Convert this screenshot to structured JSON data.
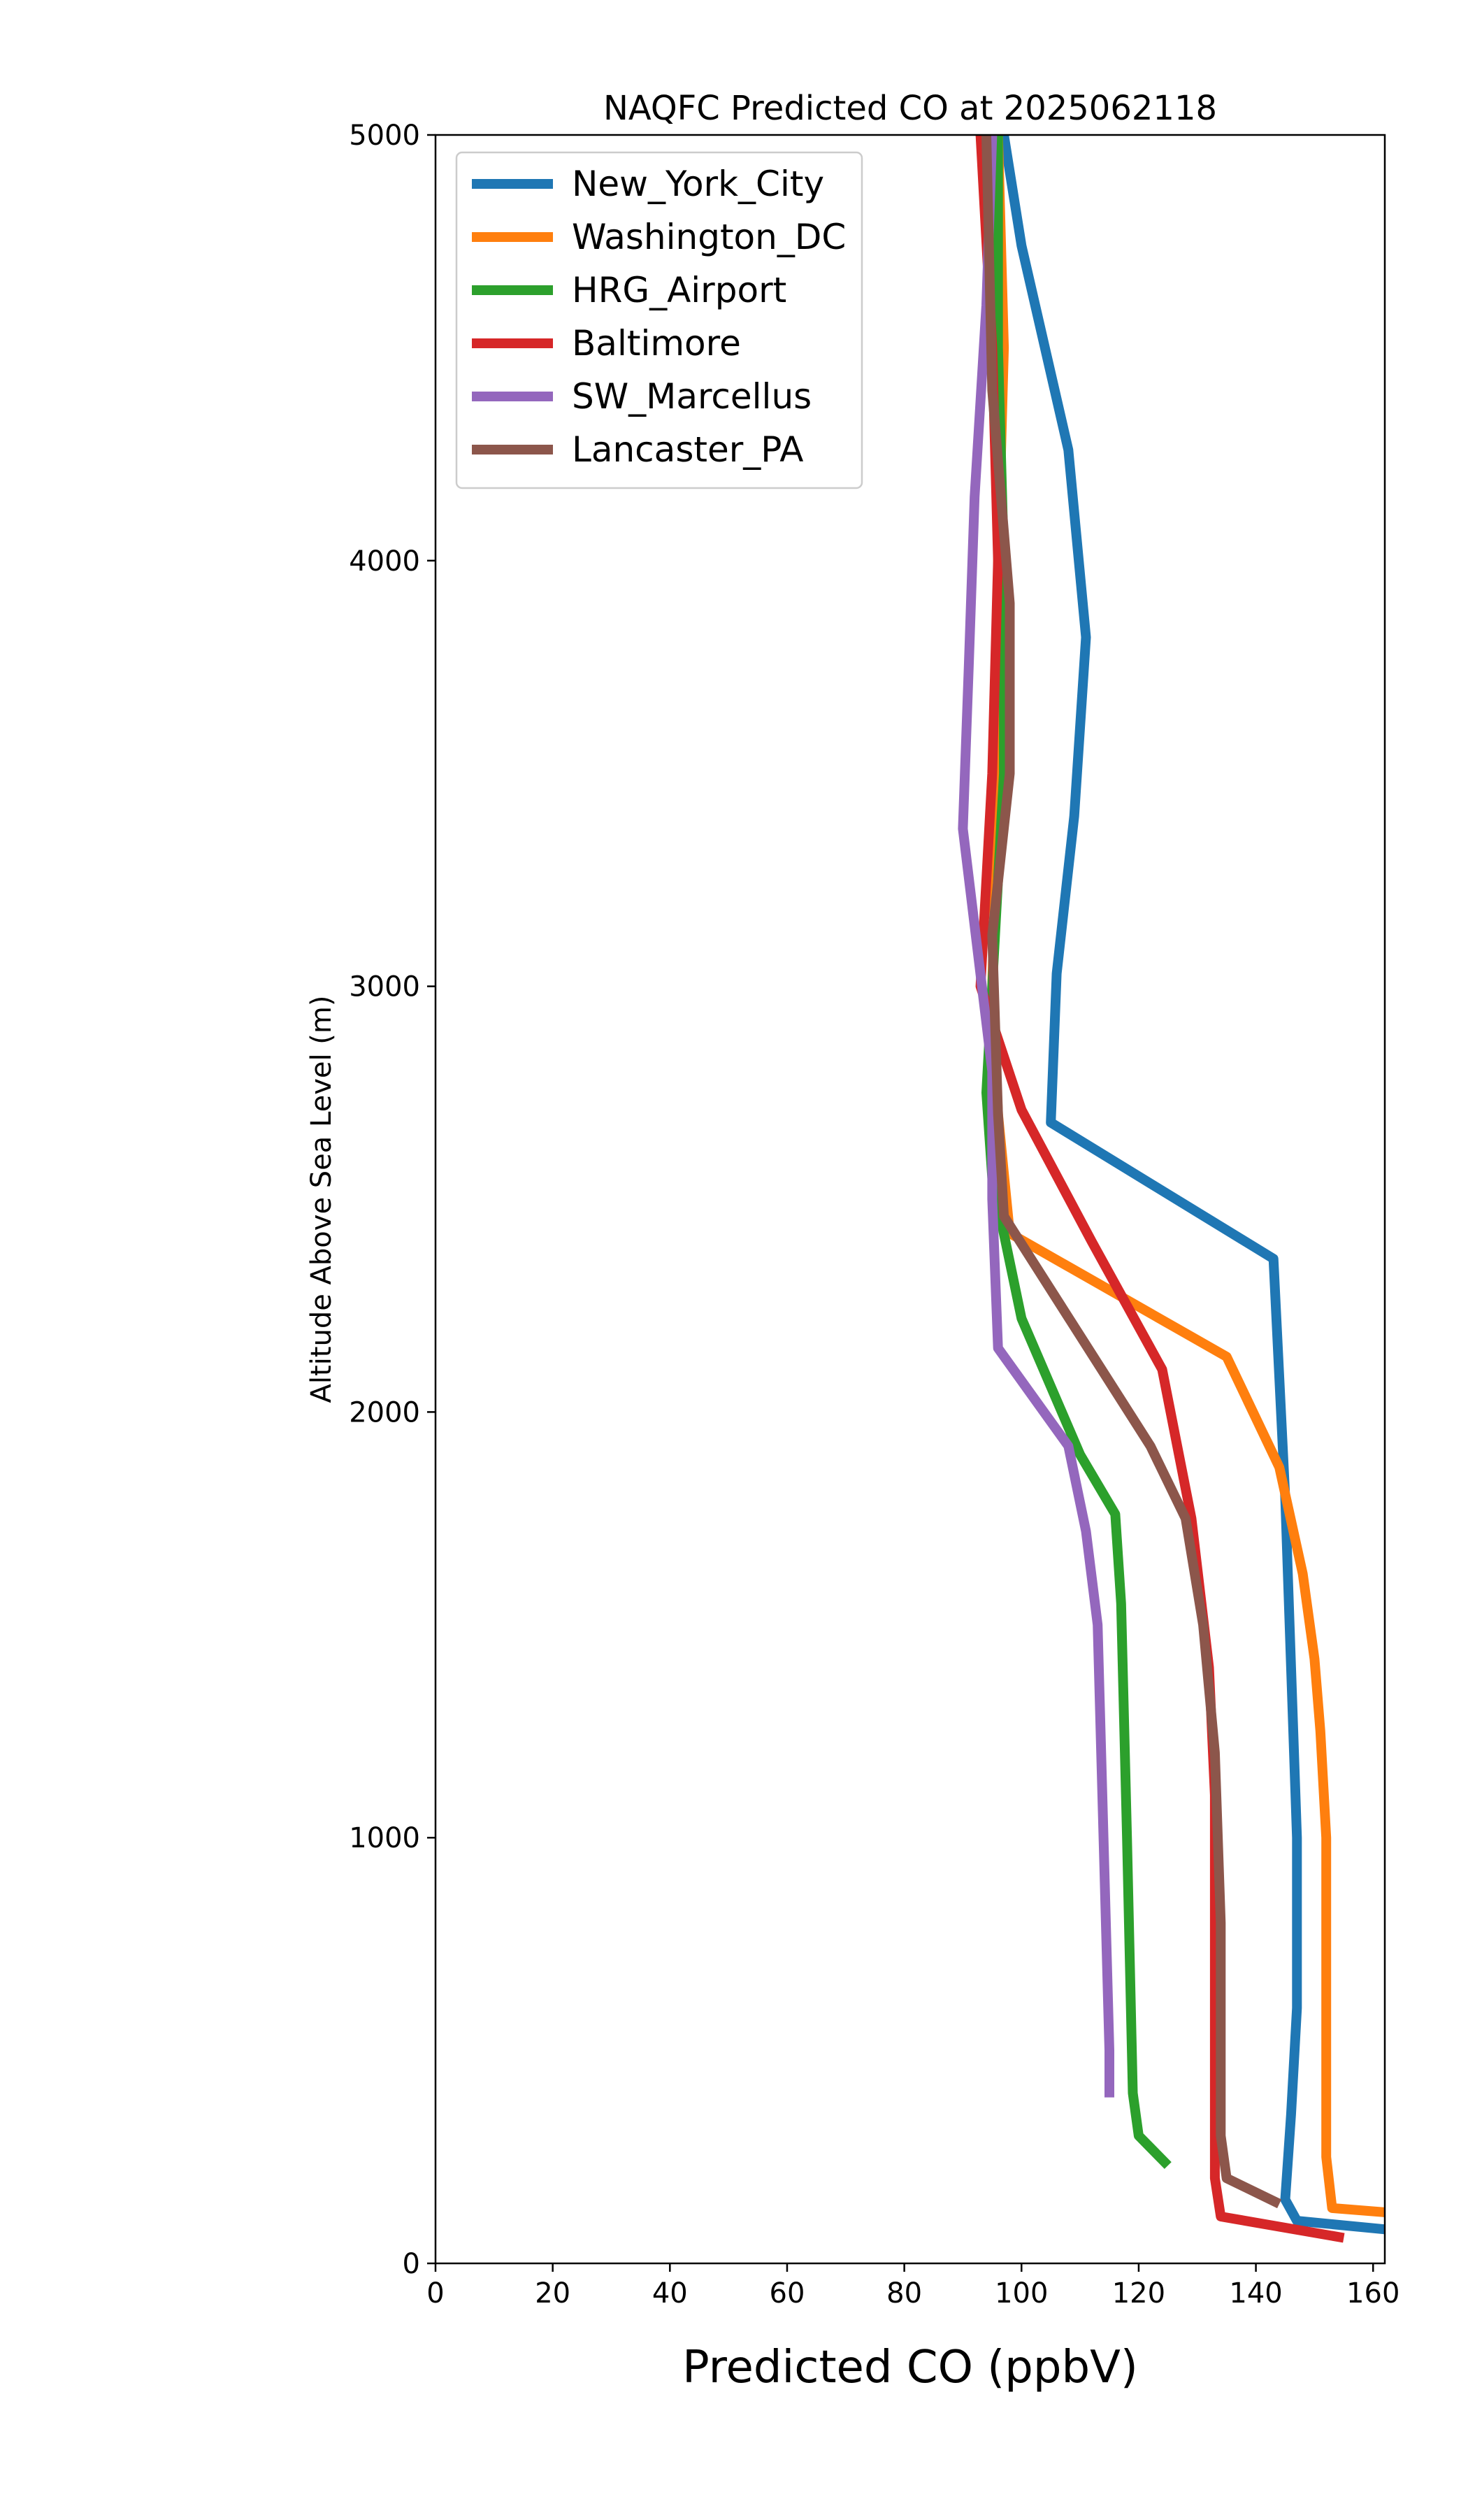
{
  "chart_data": {
    "type": "line",
    "title": "NAQFC Predicted CO at 2025062118",
    "xlabel": "Predicted CO (ppbV)",
    "ylabel": "Altitude Above Sea Level (m)",
    "xlim": [
      0,
      162
    ],
    "ylim": [
      0,
      5000
    ],
    "xticks": [
      "0",
      "20",
      "40",
      "60",
      "80",
      "100",
      "120",
      "140",
      "160"
    ],
    "yticks": [
      "0",
      "1000",
      "2000",
      "3000",
      "4000",
      "5000"
    ],
    "grid": false,
    "legend_position": "top-left",
    "series": [
      {
        "name": "New_York_City",
        "color": "#1f77b4",
        "points": [
          [
            162,
            80
          ],
          [
            147,
            100
          ],
          [
            145,
            150
          ],
          [
            146,
            350
          ],
          [
            147,
            600
          ],
          [
            147,
            1000
          ],
          [
            146,
            1400
          ],
          [
            145,
            1800
          ],
          [
            144,
            2080
          ],
          [
            143,
            2360
          ],
          [
            105,
            2680
          ],
          [
            106,
            3030
          ],
          [
            109,
            3400
          ],
          [
            111,
            3820
          ],
          [
            108,
            4260
          ],
          [
            100,
            4740
          ],
          [
            97,
            5000
          ]
        ]
      },
      {
        "name": "Washington_DC",
        "color": "#ff7f0e",
        "points": [
          [
            162,
            120
          ],
          [
            153,
            130
          ],
          [
            152,
            250
          ],
          [
            152,
            700
          ],
          [
            152,
            1000
          ],
          [
            151,
            1250
          ],
          [
            150,
            1420
          ],
          [
            148,
            1620
          ],
          [
            144,
            1870
          ],
          [
            135,
            2130
          ],
          [
            98,
            2420
          ],
          [
            96,
            2700
          ],
          [
            95,
            3000
          ],
          [
            96,
            3500
          ],
          [
            96,
            4000
          ],
          [
            97,
            4500
          ],
          [
            96,
            5000
          ]
        ]
      },
      {
        "name": "HRG_Airport",
        "color": "#2ca02c",
        "points": [
          [
            125,
            230
          ],
          [
            120,
            300
          ],
          [
            119,
            400
          ],
          [
            118,
            1000
          ],
          [
            117,
            1550
          ],
          [
            116,
            1760
          ],
          [
            110,
            1900
          ],
          [
            100,
            2220
          ],
          [
            95,
            2550
          ],
          [
            94,
            2750
          ],
          [
            95,
            3000
          ],
          [
            97,
            3500
          ],
          [
            97,
            4000
          ],
          [
            96,
            4500
          ],
          [
            96,
            5000
          ]
        ]
      },
      {
        "name": "Baltimore",
        "color": "#d62728",
        "points": [
          [
            155,
            60
          ],
          [
            134,
            110
          ],
          [
            133,
            200
          ],
          [
            133,
            800
          ],
          [
            133,
            1100
          ],
          [
            132,
            1400
          ],
          [
            129,
            1750
          ],
          [
            124,
            2100
          ],
          [
            112,
            2400
          ],
          [
            100,
            2710
          ],
          [
            93,
            3000
          ],
          [
            95,
            3500
          ],
          [
            96,
            4000
          ],
          [
            95,
            4500
          ],
          [
            93,
            5000
          ]
        ]
      },
      {
        "name": "SW_Marcellus",
        "color": "#9467bd",
        "points": [
          [
            115,
            390
          ],
          [
            115,
            500
          ],
          [
            114,
            1000
          ],
          [
            113,
            1500
          ],
          [
            111,
            1720
          ],
          [
            108,
            1920
          ],
          [
            96,
            2150
          ],
          [
            95,
            2500
          ],
          [
            95,
            2800
          ],
          [
            90,
            3370
          ],
          [
            91,
            3750
          ],
          [
            92,
            4150
          ],
          [
            94,
            4600
          ],
          [
            95,
            5000
          ]
        ]
      },
      {
        "name": "Lancaster_PA",
        "color": "#8c564b",
        "points": [
          [
            144,
            140
          ],
          [
            135,
            200
          ],
          [
            134,
            300
          ],
          [
            134,
            800
          ],
          [
            133,
            1200
          ],
          [
            131,
            1500
          ],
          [
            128,
            1750
          ],
          [
            122,
            1920
          ],
          [
            97,
            2460
          ],
          [
            96,
            2700
          ],
          [
            95,
            3120
          ],
          [
            98,
            3500
          ],
          [
            98,
            3900
          ],
          [
            95,
            4400
          ],
          [
            94,
            5000
          ]
        ]
      }
    ]
  }
}
